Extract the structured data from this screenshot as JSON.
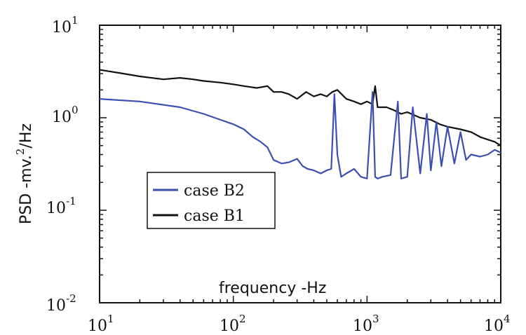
{
  "chart_data": {
    "type": "line",
    "title": "",
    "xlabel": "frequency -Hz",
    "ylabel": "PSD -mv.",
    "ylabel_exp": "2",
    "ylabel_tail": "/Hz",
    "xscale": "log",
    "yscale": "log",
    "xlim": [
      10,
      10000
    ],
    "ylim": [
      0.01,
      10
    ],
    "grid": false,
    "legend_position": "center-left",
    "x_ticks": [
      {
        "base": "10",
        "exp": "1"
      },
      {
        "base": "10",
        "exp": "2"
      },
      {
        "base": "10",
        "exp": "3"
      },
      {
        "base": "10",
        "exp": "4"
      }
    ],
    "y_ticks": [
      {
        "base": "10",
        "exp": "-2"
      },
      {
        "base": "10",
        "exp": "-1"
      },
      {
        "base": "10",
        "exp": "0"
      },
      {
        "base": "10",
        "exp": "1"
      }
    ],
    "series": [
      {
        "name": "case B2",
        "color": "#3a4fb0",
        "x": [
          10,
          20,
          40,
          60,
          80,
          100,
          120,
          140,
          160,
          180,
          200,
          230,
          260,
          300,
          330,
          360,
          400,
          450,
          500,
          540,
          570,
          600,
          640,
          700,
          800,
          900,
          1000,
          1100,
          1150,
          1200,
          1300,
          1500,
          1700,
          1800,
          2000,
          2200,
          2500,
          2800,
          3000,
          3300,
          3600,
          4000,
          4500,
          5000,
          5500,
          6000,
          7000,
          8000,
          9000,
          10000
        ],
        "y": [
          1.6,
          1.5,
          1.3,
          1.1,
          0.95,
          0.85,
          0.75,
          0.62,
          0.55,
          0.48,
          0.35,
          0.32,
          0.33,
          0.36,
          0.3,
          0.28,
          0.27,
          0.25,
          0.27,
          0.28,
          1.8,
          0.4,
          0.23,
          0.25,
          0.28,
          0.23,
          0.22,
          1.9,
          0.23,
          0.22,
          0.23,
          0.24,
          1.5,
          0.22,
          0.23,
          1.3,
          0.25,
          1.1,
          0.27,
          0.9,
          0.3,
          0.8,
          0.32,
          0.7,
          0.35,
          0.4,
          0.38,
          0.4,
          0.45,
          0.42
        ]
      },
      {
        "name": "case B1",
        "color": "#111111",
        "x": [
          10,
          15,
          20,
          30,
          40,
          50,
          60,
          80,
          100,
          120,
          150,
          180,
          200,
          230,
          260,
          300,
          350,
          400,
          450,
          500,
          550,
          600,
          700,
          800,
          900,
          1000,
          1100,
          1150,
          1200,
          1400,
          1600,
          1800,
          2000,
          2500,
          3000,
          3500,
          4000,
          5000,
          6000,
          7000,
          8000,
          9000,
          10000
        ],
        "y": [
          3.3,
          3.0,
          2.8,
          2.6,
          2.7,
          2.6,
          2.5,
          2.4,
          2.3,
          2.2,
          2.1,
          2.2,
          1.9,
          1.9,
          1.8,
          1.6,
          1.9,
          1.7,
          1.8,
          1.7,
          1.9,
          2.0,
          1.6,
          1.5,
          1.4,
          1.5,
          1.4,
          2.2,
          1.3,
          1.3,
          1.2,
          1.1,
          1.15,
          1.0,
          0.95,
          0.85,
          0.8,
          0.75,
          0.7,
          0.62,
          0.58,
          0.55,
          0.5
        ]
      }
    ]
  }
}
